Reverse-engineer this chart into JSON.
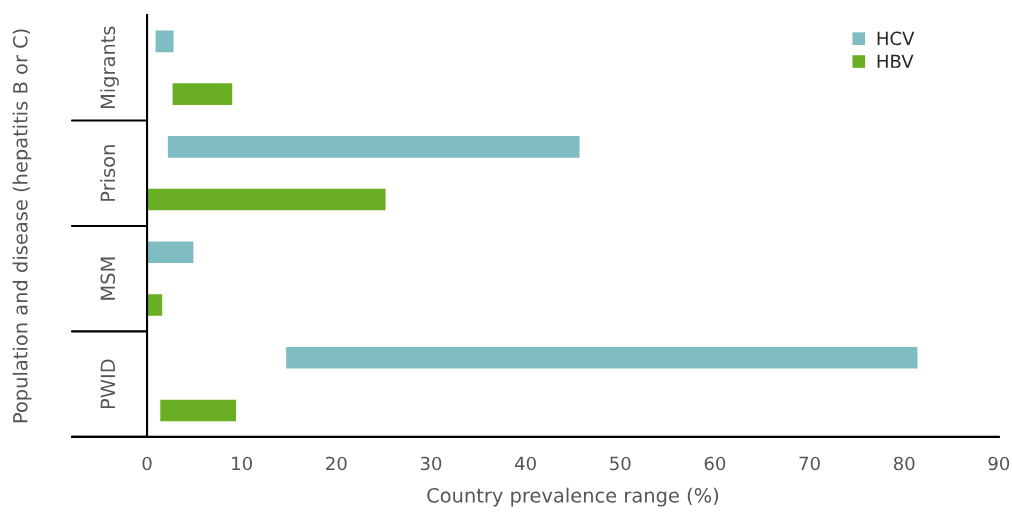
{
  "chart_data": {
    "type": "bar",
    "orientation": "horizontal",
    "xlabel": "Country prevalence range (%)",
    "ylabel": "Population and disease (hepatitis B or C)",
    "categories": [
      "Migrants",
      "Prison",
      "MSM",
      "PWID"
    ],
    "series": [
      {
        "name": "HCV",
        "color": "#7fbdc2",
        "base": [
          0.9,
          2.2,
          0,
          14.7
        ],
        "values": [
          1.9,
          43.5,
          4.9,
          66.7
        ]
      },
      {
        "name": "HBV",
        "color": "#6aaf23",
        "base": [
          2.7,
          0,
          0,
          1.4
        ],
        "values": [
          6.3,
          25.2,
          1.6,
          8.0
        ]
      }
    ],
    "xlim": [
      0,
      90
    ],
    "xticks": [
      0,
      10,
      20,
      30,
      40,
      50,
      60,
      70,
      80,
      90
    ],
    "grid": false,
    "legend": "top right"
  }
}
